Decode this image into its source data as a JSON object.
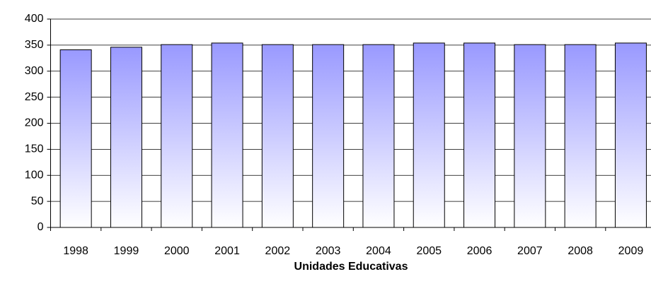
{
  "chart_data": {
    "type": "bar",
    "categories": [
      "1998",
      "1999",
      "2000",
      "2001",
      "2002",
      "2003",
      "2004",
      "2005",
      "2006",
      "2007",
      "2008",
      "2009"
    ],
    "values": [
      341,
      346,
      351,
      354,
      351,
      351,
      351,
      354,
      354,
      351,
      351,
      354
    ],
    "color": "#9999ff",
    "x_label": "Unidades Educativas",
    "ylim": [
      0,
      400
    ],
    "yticks": [
      0,
      50,
      100,
      150,
      200,
      250,
      300,
      350,
      400
    ],
    "grid": true
  }
}
